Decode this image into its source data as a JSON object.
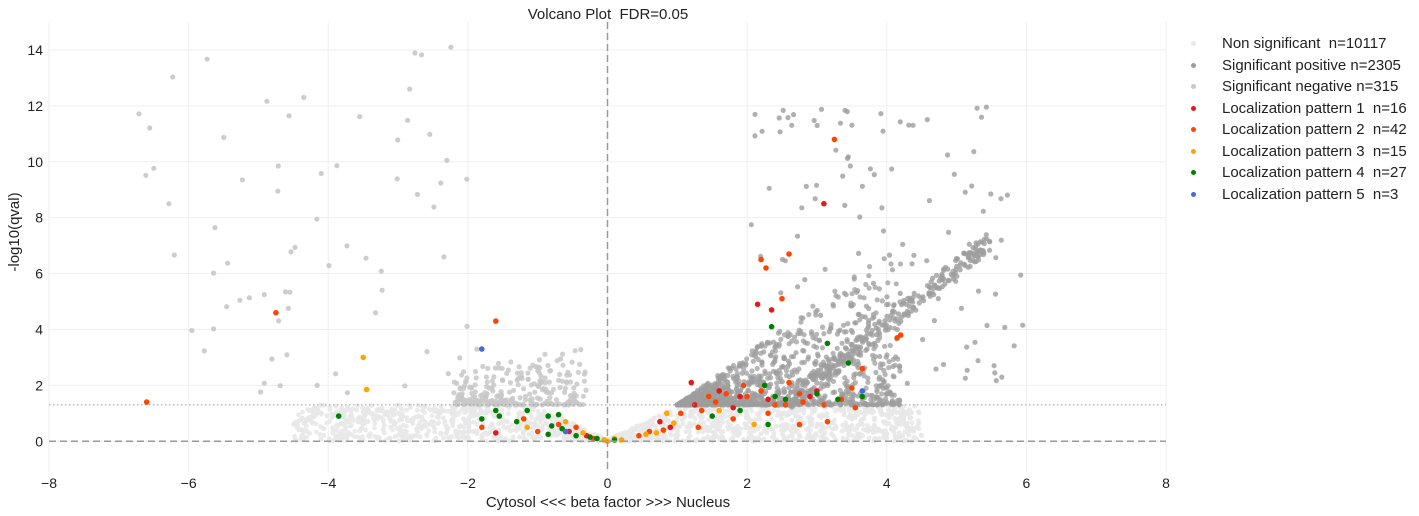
{
  "chart_data": {
    "type": "scatter",
    "title": "Volcano Plot  FDR=0.05",
    "xlabel": "Cytosol <<< beta factor >>> Nucleus",
    "ylabel": "-log10(qval)",
    "xlim": [
      -8,
      8
    ],
    "ylim": [
      -1.1,
      15.0
    ],
    "xticks": [
      -8,
      -6,
      -4,
      -2,
      0,
      2,
      4,
      6,
      8
    ],
    "yticks": [
      0,
      2,
      4,
      6,
      8,
      10,
      12,
      14
    ],
    "threshold_y": 1.3,
    "reference_x": 0,
    "reference_y": 0,
    "grid": true,
    "legend_position": "outside-right",
    "series": [
      {
        "name": "Non significant  n=10117",
        "color": "#e8e8e8",
        "count": 10117
      },
      {
        "name": "Significant positive n=2305",
        "color": "#9e9e9e",
        "count": 2305
      },
      {
        "name": "Significant negative n=315",
        "color": "#c8c8c8",
        "count": 315
      },
      {
        "name": "Localization pattern 1  n=16",
        "color": "#e31a1c",
        "count": 16,
        "points": [
          [
            3.1,
            8.5
          ],
          [
            2.15,
            4.9
          ],
          [
            2.35,
            4.7
          ],
          [
            1.2,
            2.1
          ],
          [
            1.6,
            1.8
          ],
          [
            1.9,
            1.6
          ],
          [
            2.3,
            1.5
          ],
          [
            2.9,
            1.6
          ],
          [
            3.0,
            1.8
          ],
          [
            1.25,
            1.3
          ],
          [
            1.8,
            1.2
          ],
          [
            0.9,
            0.5
          ],
          [
            0.75,
            0.7
          ],
          [
            -1.6,
            0.3
          ],
          [
            -0.55,
            0.35
          ],
          [
            -0.3,
            0.2
          ]
        ]
      },
      {
        "name": "Localization pattern 2  n=42",
        "color": "#ff4500",
        "count": 42,
        "points": [
          [
            -6.6,
            1.4
          ],
          [
            -4.75,
            4.6
          ],
          [
            -1.6,
            4.3
          ],
          [
            3.25,
            10.8
          ],
          [
            2.2,
            6.5
          ],
          [
            2.27,
            6.2
          ],
          [
            2.6,
            6.7
          ],
          [
            2.5,
            5.1
          ],
          [
            4.15,
            3.7
          ],
          [
            4.2,
            3.8
          ],
          [
            3.65,
            2.6
          ],
          [
            3.5,
            1.9
          ],
          [
            3.35,
            1.5
          ],
          [
            3.1,
            1.3
          ],
          [
            2.6,
            2.1
          ],
          [
            2.2,
            1.8
          ],
          [
            2.8,
            1.4
          ],
          [
            2.4,
            1.3
          ],
          [
            2.0,
            1.6
          ],
          [
            1.55,
            1.4
          ],
          [
            1.35,
            1.1
          ],
          [
            1.45,
            1.6
          ],
          [
            1.7,
            1.7
          ],
          [
            1.95,
            2.0
          ],
          [
            2.3,
            1.0
          ],
          [
            2.55,
            1.3
          ],
          [
            2.75,
            1.7
          ],
          [
            3.55,
            1.2
          ],
          [
            2.75,
            0.6
          ],
          [
            3.15,
            0.7
          ],
          [
            1.8,
            0.8
          ],
          [
            1.3,
            0.5
          ],
          [
            1.05,
            1.0
          ],
          [
            0.45,
            0.2
          ],
          [
            0.6,
            0.35
          ],
          [
            0.8,
            0.4
          ],
          [
            -1.8,
            0.5
          ],
          [
            -1.2,
            0.8
          ],
          [
            -1.0,
            0.35
          ],
          [
            -0.7,
            0.6
          ],
          [
            -0.45,
            0.5
          ],
          [
            -0.2,
            0.1
          ]
        ]
      },
      {
        "name": "Localization pattern 3  n=15",
        "color": "#ffa500",
        "count": 15,
        "points": [
          [
            -3.5,
            3.0
          ],
          [
            -3.45,
            1.85
          ],
          [
            0.85,
            1.0
          ],
          [
            0.7,
            0.3
          ],
          [
            0.55,
            0.25
          ],
          [
            0.2,
            0.05
          ],
          [
            0.1,
            0.1
          ],
          [
            0.0,
            0.0
          ],
          [
            -0.05,
            0.05
          ],
          [
            -1.15,
            0.5
          ],
          [
            -0.6,
            0.7
          ],
          [
            -0.35,
            0.3
          ],
          [
            2.1,
            0.6
          ],
          [
            1.6,
            1.1
          ],
          [
            0.95,
            0.65
          ]
        ]
      },
      {
        "name": "Localization pattern 4  n=27",
        "color": "#008000",
        "count": 27,
        "points": [
          [
            2.35,
            4.1
          ],
          [
            3.15,
            3.5
          ],
          [
            3.45,
            2.8
          ],
          [
            2.25,
            2.0
          ],
          [
            2.4,
            1.6
          ],
          [
            2.55,
            1.5
          ],
          [
            3.0,
            1.7
          ],
          [
            3.3,
            1.5
          ],
          [
            3.65,
            1.6
          ],
          [
            2.3,
            0.6
          ],
          [
            1.9,
            1.1
          ],
          [
            1.5,
            0.9
          ],
          [
            0.1,
            0.05
          ],
          [
            -3.85,
            0.9
          ],
          [
            -1.8,
            0.8
          ],
          [
            -1.6,
            1.1
          ],
          [
            -1.55,
            0.9
          ],
          [
            -1.3,
            0.7
          ],
          [
            -1.15,
            1.1
          ],
          [
            -0.85,
            0.9
          ],
          [
            -0.7,
            0.95
          ],
          [
            -0.65,
            0.45
          ],
          [
            -0.8,
            0.55
          ],
          [
            -0.85,
            0.25
          ],
          [
            -0.45,
            0.2
          ],
          [
            -0.25,
            0.15
          ],
          [
            -0.15,
            0.1
          ]
        ]
      },
      {
        "name": "Localization pattern 5  n=3",
        "color": "#4169e1",
        "count": 3,
        "points": [
          [
            -1.8,
            3.3
          ],
          [
            3.65,
            1.8
          ],
          [
            -0.6,
            0.35
          ]
        ]
      }
    ]
  }
}
